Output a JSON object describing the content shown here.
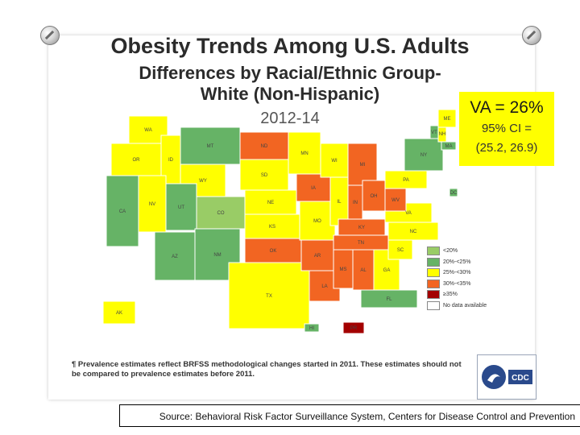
{
  "title": "Obesity Trends Among U.S. Adults",
  "subtitle": "Differences by Racial/Ethnic Group- White (Non-Hispanic)",
  "years": "2012-14",
  "va_box": {
    "main": "VA = 26%",
    "ci_line1": "95% CI =",
    "ci_line2": "(25.2, 26.9)"
  },
  "legend": [
    {
      "label": "<20%",
      "color": "#99cc66"
    },
    {
      "label": "20%-<25%",
      "color": "#66b366"
    },
    {
      "label": "25%-<30%",
      "color": "#ffff00"
    },
    {
      "label": "30%-<35%",
      "color": "#f26522"
    },
    {
      "label": "≥35%",
      "color": "#a30000"
    },
    {
      "label": "No data available",
      "color": "#ffffff"
    }
  ],
  "map_data": {
    "states": {
      "WA": "#ffff00",
      "OR": "#ffff00",
      "CA": "#66b366",
      "ID": "#ffff00",
      "NV": "#ffff00",
      "MT": "#66b366",
      "WY": "#ffff00",
      "UT": "#66b366",
      "AZ": "#66b366",
      "CO": "#99cc66",
      "NM": "#66b366",
      "ND": "#f26522",
      "SD": "#ffff00",
      "NE": "#ffff00",
      "KS": "#ffff00",
      "OK": "#f26522",
      "TX": "#ffff00",
      "MN": "#ffff00",
      "IA": "#f26522",
      "MO": "#ffff00",
      "AR": "#f26522",
      "LA": "#f26522",
      "WI": "#ffff00",
      "IL": "#ffff00",
      "MI": "#f26522",
      "IN": "#f26522",
      "OH": "#f26522",
      "KY": "#f26522",
      "TN": "#f26522",
      "MS": "#f26522",
      "AL": "#f26522",
      "GA": "#ffff00",
      "FL": "#66b366",
      "SC": "#ffff00",
      "NC": "#ffff00",
      "VA": "#ffff00",
      "WV": "#f26522",
      "PA": "#ffff00",
      "NY": "#66b366",
      "ME": "#ffff00",
      "NH": "#ffff00",
      "VT": "#66b366",
      "MA": "#66b366",
      "DC": "#66b366",
      "AK": "#ffff00",
      "HI": "#66b366",
      "PR": "#a30000"
    }
  },
  "footnote": "¶ Prevalence estimates reflect BRFSS methodological changes started in 2011. These estimates should not be compared to prevalence estimates before 2011.",
  "source": "Source: Behavioral Risk Factor Surveillance System, Centers for Disease Control and Prevention",
  "logo": "CDC"
}
